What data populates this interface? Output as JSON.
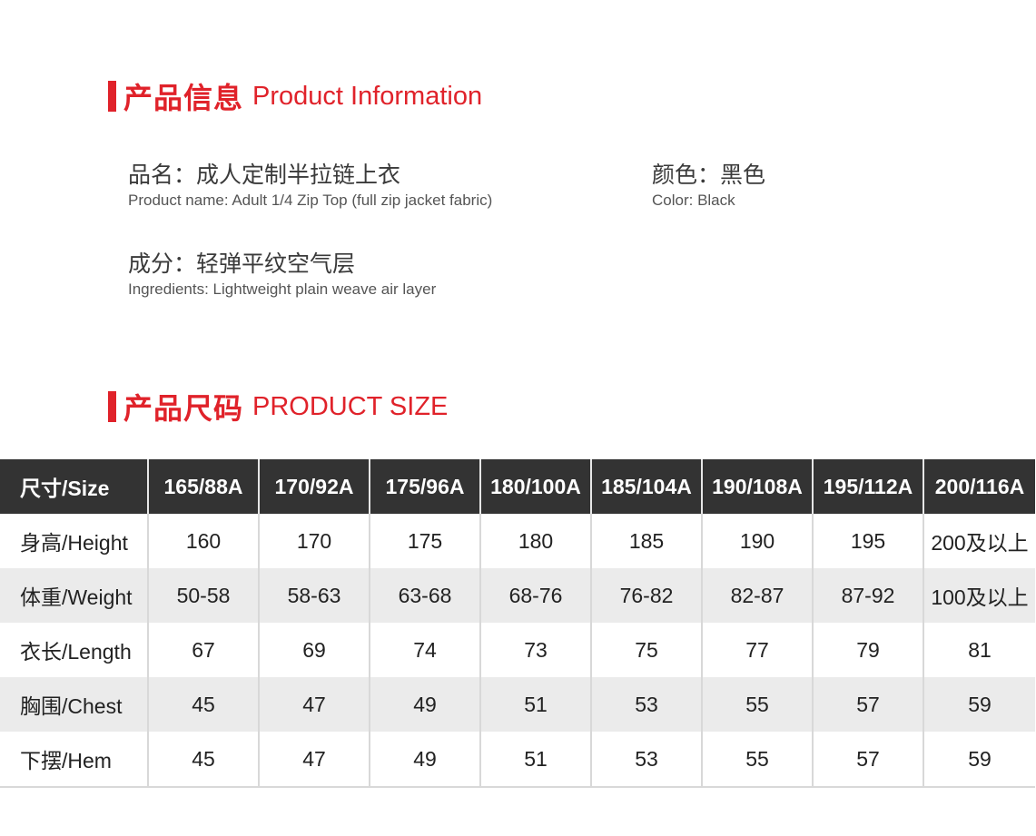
{
  "info_section": {
    "title_cn": "产品信息",
    "title_en": "Product Information"
  },
  "product_name": {
    "cn": "品名：成人定制半拉链上衣",
    "en": "Product name: Adult 1/4 Zip Top (full zip jacket fabric)"
  },
  "color": {
    "cn": "颜色：黑色",
    "en": "Color: Black"
  },
  "ingredients": {
    "cn": "成分：轻弹平纹空气层",
    "en": "Ingredients: Lightweight plain weave air layer"
  },
  "size_section": {
    "title_cn": "产品尺码",
    "title_en": "PRODUCT SIZE"
  },
  "accent_color": "#e0222a",
  "size_table": {
    "headers": [
      "尺寸/Size",
      "165/88A",
      "170/92A",
      "175/96A",
      "180/100A",
      "185/104A",
      "190/108A",
      "195/112A",
      "200/116A"
    ],
    "rows": [
      [
        "身高/Height",
        "160",
        "170",
        "175",
        "180",
        "185",
        "190",
        "195",
        "200及以上"
      ],
      [
        "体重/Weight",
        "50-58",
        "58-63",
        "63-68",
        "68-76",
        "76-82",
        "82-87",
        "87-92",
        "100及以上"
      ],
      [
        "衣长/Length",
        "67",
        "69",
        "74",
        "73",
        "75",
        "77",
        "79",
        "81"
      ],
      [
        "胸围/Chest",
        "45",
        "47",
        "49",
        "51",
        "53",
        "55",
        "57",
        "59"
      ],
      [
        "下摆/Hem",
        "45",
        "47",
        "49",
        "51",
        "53",
        "55",
        "57",
        "59"
      ]
    ]
  }
}
